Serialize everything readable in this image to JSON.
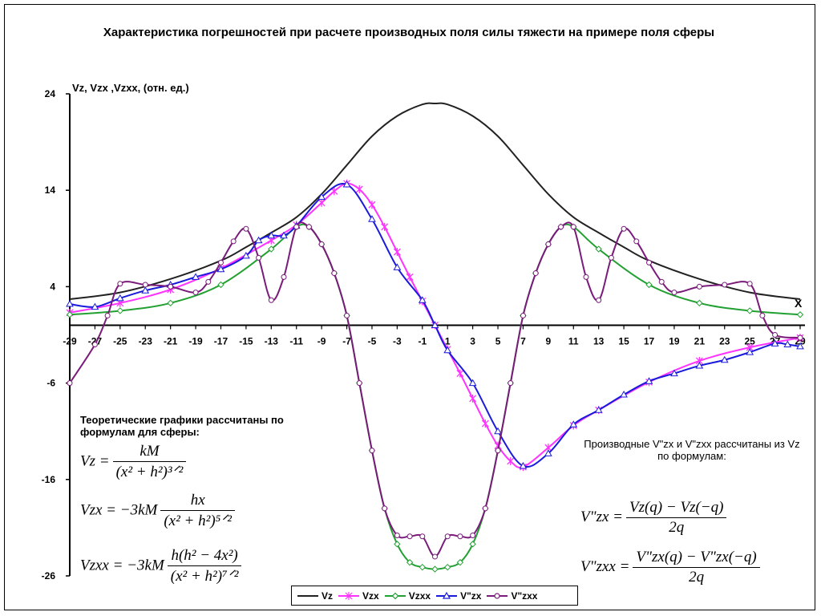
{
  "chart_data": {
    "type": "line",
    "title": "Характеристика погрешностей при расчете производных поля силы тяжести на примере поля сферы",
    "ylabel": "Vz, Vzx ,Vzxx, (отн. ед.)",
    "xlabel": "X",
    "xlim": [
      -29,
      29
    ],
    "ylim": [
      -26,
      24
    ],
    "x_ticks": [
      -29,
      -27,
      -25,
      -23,
      -21,
      -19,
      -17,
      -15,
      -13,
      -11,
      -9,
      -7,
      -5,
      -3,
      -1,
      1,
      3,
      5,
      7,
      9,
      11,
      13,
      15,
      17,
      19,
      21,
      23,
      25,
      27,
      29
    ],
    "y_ticks": [
      24,
      14,
      4,
      -6,
      -16,
      -26
    ],
    "grid": false,
    "legend_position": "bottom",
    "series": [
      {
        "name": "Vz",
        "color": "#222222",
        "marker": "none",
        "x": [
          -29,
          -25,
          -21,
          -17,
          -15,
          -13,
          -11,
          -9,
          -7,
          -5,
          -3,
          -1,
          0,
          1,
          3,
          5,
          7,
          9,
          11,
          13,
          15,
          17,
          21,
          25,
          29
        ],
        "y": [
          2.7,
          3.4,
          4.8,
          6.7,
          8.1,
          9.6,
          11.2,
          13.6,
          16.6,
          19.6,
          21.7,
          22.9,
          23.0,
          22.9,
          21.7,
          19.6,
          16.6,
          13.6,
          11.2,
          9.6,
          8.1,
          6.7,
          4.8,
          3.4,
          2.7
        ]
      },
      {
        "name": "Vzx",
        "color": "#ff33ff",
        "marker": "star",
        "x": [
          -29,
          -25,
          -21,
          -17,
          -13,
          -11,
          -9,
          -8,
          -7,
          -6,
          -5,
          -4,
          -3,
          -2,
          -1,
          0,
          1,
          2,
          3,
          4,
          5,
          6,
          7,
          9,
          11,
          13,
          17,
          21,
          25,
          29
        ],
        "y": [
          1.3,
          2.3,
          3.7,
          5.9,
          8.8,
          10.4,
          12.7,
          13.9,
          14.7,
          14.1,
          12.5,
          10.2,
          7.6,
          5.0,
          2.5,
          0,
          -2.5,
          -5.0,
          -7.6,
          -10.2,
          -12.5,
          -14.1,
          -14.7,
          -12.7,
          -10.4,
          -8.8,
          -5.9,
          -3.7,
          -2.3,
          -1.3
        ]
      },
      {
        "name": "Vzxx",
        "color": "#22a032",
        "marker": "diamond",
        "x": [
          -29,
          -25,
          -21,
          -17,
          -13,
          -11,
          -10,
          -9,
          -8,
          -7,
          -6,
          -5,
          -4,
          -3,
          -2,
          -1,
          0,
          1,
          2,
          3,
          4,
          5,
          6,
          7,
          8,
          9,
          10,
          11,
          13,
          17,
          21,
          25,
          29
        ],
        "y": [
          1.1,
          1.5,
          2.3,
          4.2,
          7.9,
          10.2,
          10.2,
          8.4,
          5.4,
          1.0,
          -6.0,
          -13.0,
          -19.0,
          -22.7,
          -24.6,
          -25.1,
          -25.3,
          -25.1,
          -24.6,
          -22.7,
          -19.0,
          -13.0,
          -6.0,
          1.0,
          5.4,
          8.4,
          10.2,
          10.2,
          7.9,
          4.2,
          2.3,
          1.5,
          1.1
        ]
      },
      {
        "name": "V\"zx",
        "color": "#1a1adc",
        "marker": "triangle",
        "x": [
          -29,
          -27,
          -25,
          -23,
          -21,
          -19,
          -17,
          -15,
          -14,
          -13,
          -12,
          -11,
          -9,
          -7,
          -5,
          -3,
          -1,
          0,
          1,
          3,
          5,
          7,
          9,
          11,
          13,
          15,
          17,
          19,
          21,
          23,
          25,
          27,
          28,
          29
        ],
        "y": [
          2.2,
          1.9,
          2.8,
          3.6,
          4.2,
          5.0,
          5.8,
          7.2,
          8.8,
          9.3,
          9.3,
          10.3,
          13.3,
          14.6,
          11.0,
          6.0,
          2.6,
          0,
          -2.6,
          -6.0,
          -11.0,
          -14.6,
          -13.3,
          -10.3,
          -8.8,
          -7.2,
          -5.8,
          -5.0,
          -4.2,
          -3.6,
          -2.8,
          -1.9,
          -2.0,
          -2.2
        ]
      },
      {
        "name": "V\"zxx",
        "color": "#7a1a7a",
        "marker": "circle",
        "x": [
          -29,
          -27,
          -26,
          -25,
          -23,
          -21,
          -19,
          -18,
          -17,
          -16,
          -15,
          -14,
          -13,
          -12,
          -11,
          -10,
          -9,
          -8,
          -7,
          -6,
          -5,
          -4,
          -3,
          -2,
          -1,
          0,
          1,
          2,
          3,
          4,
          5,
          6,
          7,
          8,
          9,
          10,
          11,
          12,
          13,
          14,
          15,
          16,
          17,
          18,
          19,
          21,
          23,
          25,
          26,
          27,
          29
        ],
        "y": [
          -6,
          -2,
          1,
          4.3,
          4.2,
          4.0,
          3.4,
          4.5,
          6.5,
          8.7,
          10.0,
          7.0,
          2.6,
          5.0,
          10.2,
          10.2,
          8.4,
          5.4,
          1.0,
          -6.0,
          -13.0,
          -19.0,
          -21.8,
          -21.9,
          -21.9,
          -24.0,
          -21.9,
          -21.9,
          -21.8,
          -19.0,
          -13.0,
          -6.0,
          1.0,
          5.4,
          8.4,
          10.2,
          10.2,
          5.0,
          2.6,
          7.0,
          10.0,
          8.7,
          6.5,
          4.5,
          3.4,
          4.0,
          4.2,
          4.3,
          1,
          -1,
          -1.3
        ]
      }
    ]
  },
  "notes": {
    "theory_heading": "Теоретические графики рассчитаны по формулам для сферы:",
    "derived_heading": "Производные V\"zx и  V\"zxx рассчитаны из Vz по формулам:"
  },
  "formulas": {
    "vz": {
      "lhs": "Vz =",
      "num": "kM",
      "den": "(x² + h²)³ᐟ²"
    },
    "vzx": {
      "lhs": "Vzx = −3kM",
      "num": "hx",
      "den": "(x² + h²)⁵ᐟ²"
    },
    "vzxx": {
      "lhs": "Vzxx = −3kM",
      "num": "h(h² − 4x²)",
      "den": "(x² + h²)⁷ᐟ²"
    },
    "dvzx": {
      "lhs": "V\"zx =",
      "num": "Vz(q) − Vz(−q)",
      "den": "2q"
    },
    "dvzxx": {
      "lhs": "V\"zxx =",
      "num": "V\"zx(q) − V\"zx(−q)",
      "den": "2q"
    }
  }
}
